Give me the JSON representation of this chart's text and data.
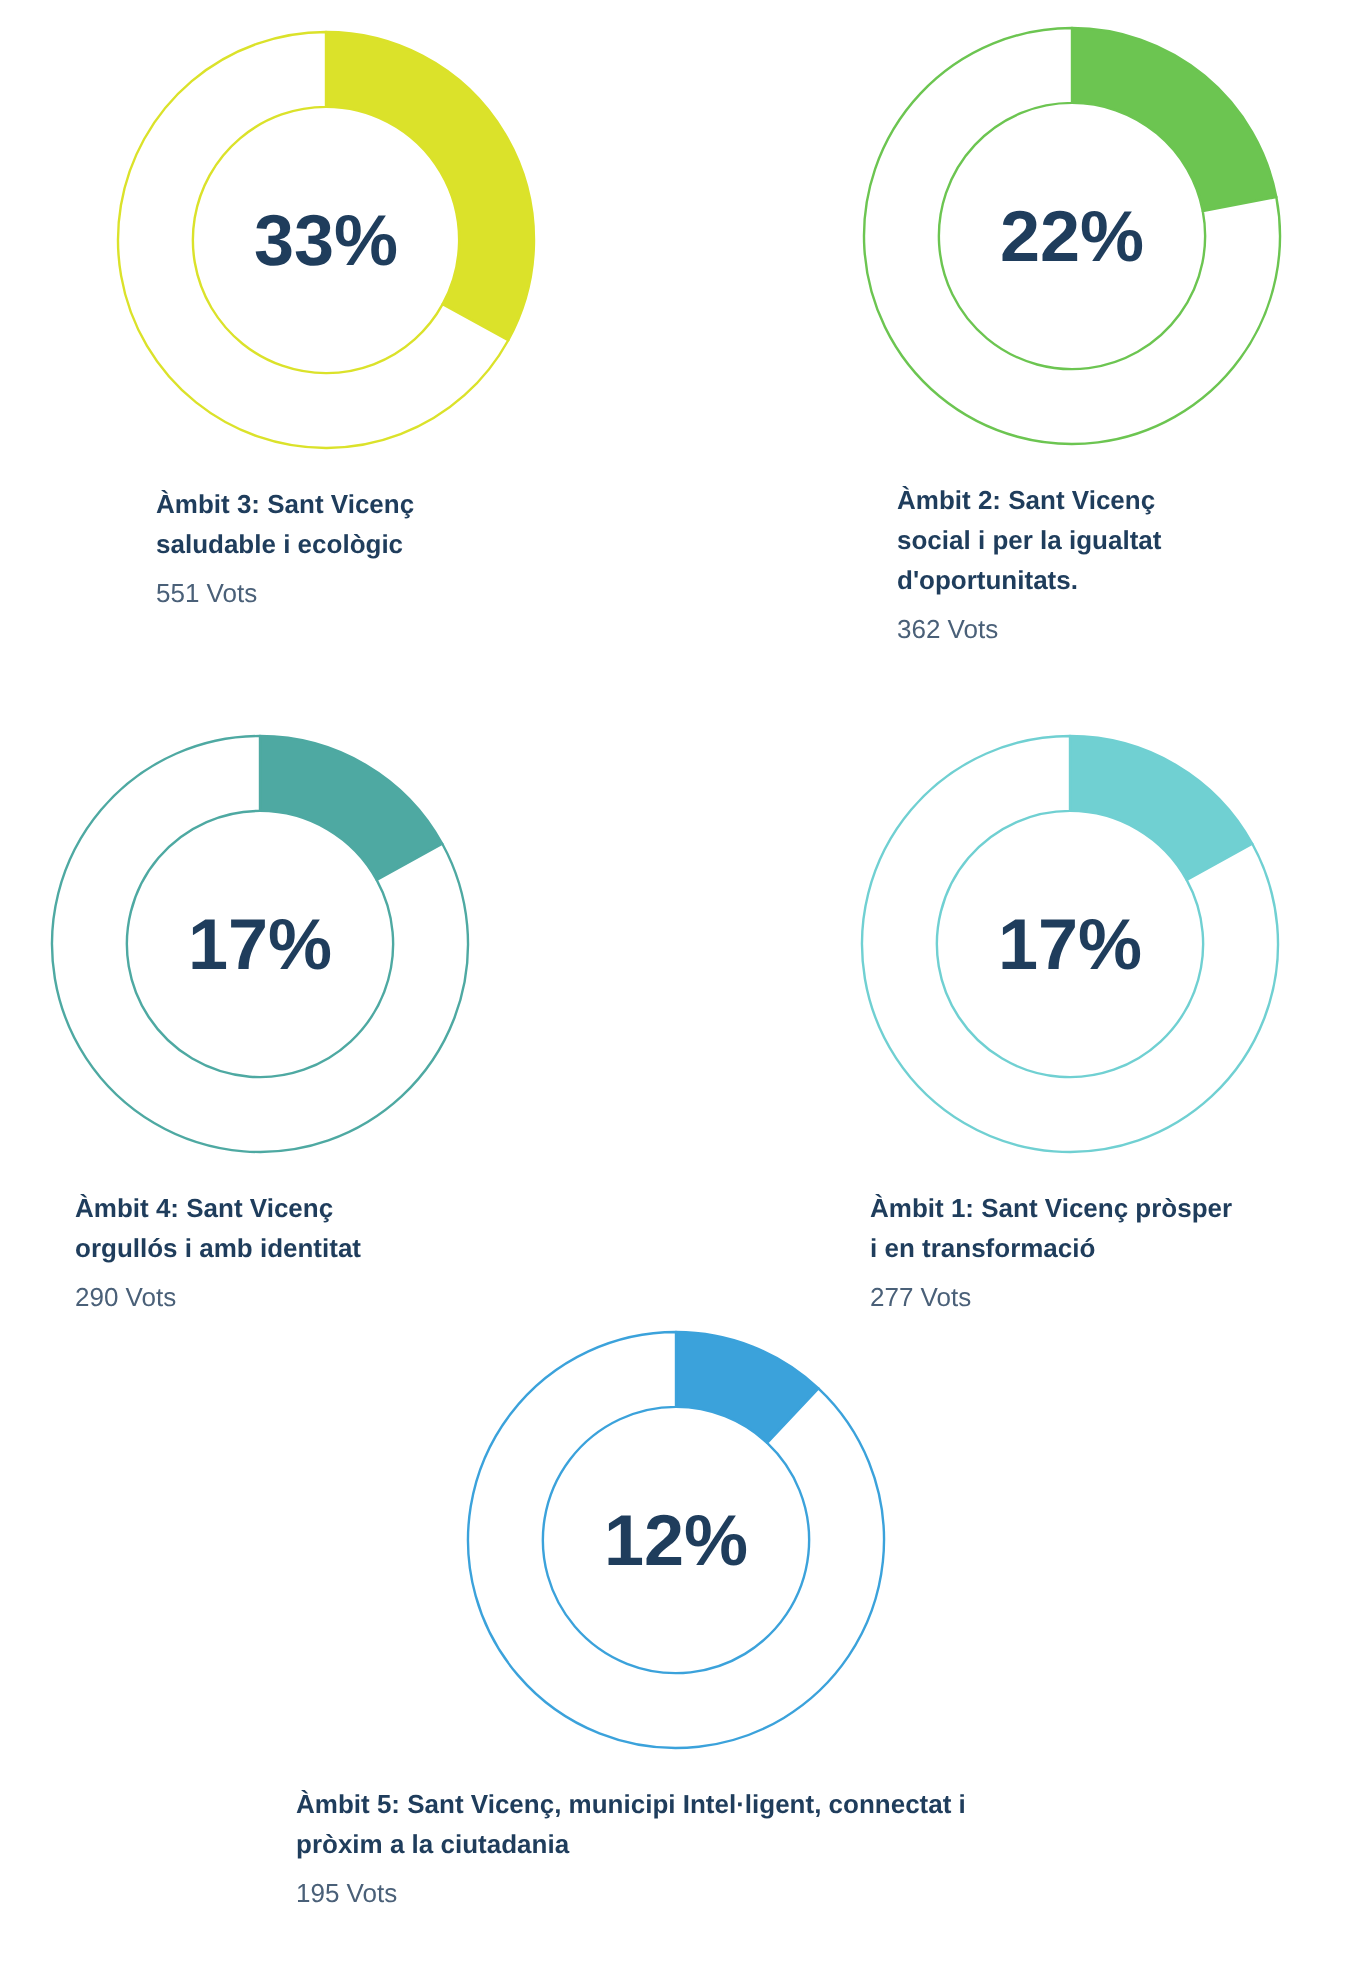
{
  "chart_data": [
    {
      "type": "donut",
      "title": "Àmbit 3: Sant Vicenç saludable i ecològic",
      "categories": [
        null,
        null
      ],
      "values": [
        33,
        67
      ],
      "colors": [
        "#dbe22a",
        "#ffffff"
      ],
      "value_labels": [
        "33%",
        null
      ],
      "annotations": [
        "551 Vots"
      ]
    },
    {
      "type": "donut",
      "title": "Àmbit 2: Sant Vicenç social i per la igualtat d'oportunitats.",
      "categories": [
        null,
        null
      ],
      "values": [
        22,
        78
      ],
      "colors": [
        "#6cc551",
        "#ffffff"
      ],
      "value_labels": [
        "22%",
        null
      ],
      "annotations": [
        "362 Vots"
      ]
    },
    {
      "type": "donut",
      "title": "Àmbit 4: Sant Vicenç orgullós i amb identitat",
      "categories": [
        null,
        null
      ],
      "values": [
        17,
        83
      ],
      "colors": [
        "#4ea9a2",
        "#ffffff"
      ],
      "value_labels": [
        "17%",
        null
      ],
      "annotations": [
        "290 Vots"
      ]
    },
    {
      "type": "donut",
      "title": "Àmbit 1: Sant Vicenç pròsper i en transformació",
      "categories": [
        null,
        null
      ],
      "values": [
        17,
        83
      ],
      "colors": [
        "#70d0d2",
        "#ffffff"
      ],
      "value_labels": [
        "17%",
        null
      ],
      "annotations": [
        "277 Vots"
      ]
    },
    {
      "type": "donut",
      "title": "Àmbit 5: Sant Vicenç, municipi Intel·ligent, connectat i pròxim a la ciutadania",
      "categories": [
        null,
        null
      ],
      "values": [
        12,
        88
      ],
      "colors": [
        "#3ba2db",
        "#ffffff"
      ],
      "value_labels": [
        "12%",
        null
      ],
      "annotations": [
        "195 Vots"
      ]
    }
  ]
}
